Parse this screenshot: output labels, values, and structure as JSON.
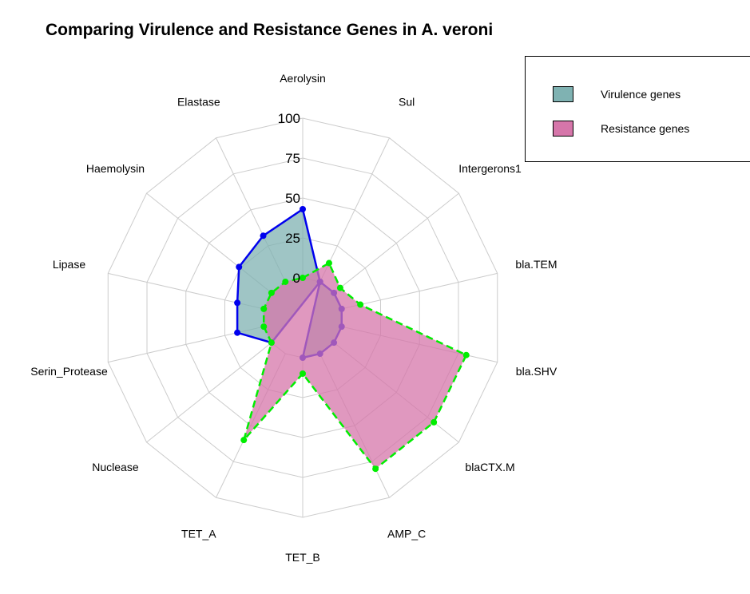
{
  "chart_data": {
    "type": "radar",
    "title": "Comparing Virulence and Resistance Genes in A. veroni",
    "axes": [
      "Aerolysin",
      "Sul",
      "Intergerons1",
      "bla.TEM",
      "bla.SHV",
      "blaCTX.M",
      "AMP_C",
      "TET_B",
      "TET_A",
      "Nuclease",
      "Serin_Protease",
      "Lipase",
      "Haemolysin",
      "Elastase"
    ],
    "rlim": [
      0,
      100
    ],
    "ticks": [
      0,
      25,
      50,
      75,
      100
    ],
    "grid": true,
    "legend_position": "top-right",
    "series": [
      {
        "name": "Virulence genes",
        "fill": "#7fb2b2",
        "line": "#0000ee",
        "dashed": false,
        "values": [
          43,
          0,
          0,
          0,
          0,
          0,
          0,
          0,
          -50,
          0,
          17,
          17,
          26,
          32
        ]
      },
      {
        "name": "Resistance genes",
        "fill": "#d676aa",
        "line": "#00ee00",
        "dashed": true,
        "values": [
          0,
          13,
          5,
          12,
          80,
          80,
          80,
          10,
          60,
          0,
          0,
          0,
          0,
          0
        ]
      }
    ]
  }
}
